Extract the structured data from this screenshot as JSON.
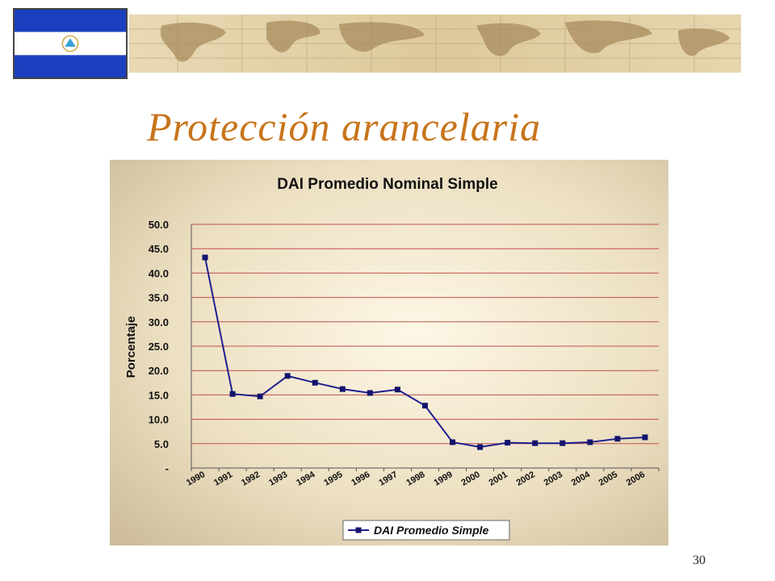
{
  "slide": {
    "title": "Protección arancelaria",
    "page_number": "30"
  },
  "colors": {
    "title": "#c8741a",
    "flag_blue": "#1a3fbf",
    "series_line": "#1f1f8f",
    "marker": "#14146e",
    "gridline": "#c0504d",
    "chart_background": "#e9dcc2"
  },
  "icons": {
    "flag": "nicaragua-flag-icon",
    "banner": "world-map-banner"
  },
  "chart_data": {
    "type": "line",
    "title": "DAI Promedio Nominal Simple",
    "xlabel": "",
    "ylabel": "Porcentaje",
    "ylim": [
      0,
      50
    ],
    "yticks": [
      0,
      5,
      10,
      15,
      20,
      25,
      30,
      35,
      40,
      45,
      50
    ],
    "ytick_labels": [
      "-",
      "5.0",
      "10.0",
      "15.0",
      "20.0",
      "25.0",
      "30.0",
      "35.0",
      "40.0",
      "45.0",
      "50.0"
    ],
    "categories": [
      "1990",
      "1991",
      "1992",
      "1993",
      "1994",
      "1995",
      "1996",
      "1997",
      "1998",
      "1999",
      "2000",
      "2001",
      "2002",
      "2003",
      "2004",
      "2005",
      "2006"
    ],
    "series": [
      {
        "name": "DAI Promedio Simple",
        "values": [
          43.2,
          15.2,
          14.7,
          18.9,
          17.5,
          16.2,
          15.4,
          16.1,
          12.8,
          5.3,
          4.3,
          5.2,
          5.1,
          5.1,
          5.3,
          6.0,
          6.3
        ]
      }
    ],
    "grid": true,
    "legend_position": "bottom"
  }
}
